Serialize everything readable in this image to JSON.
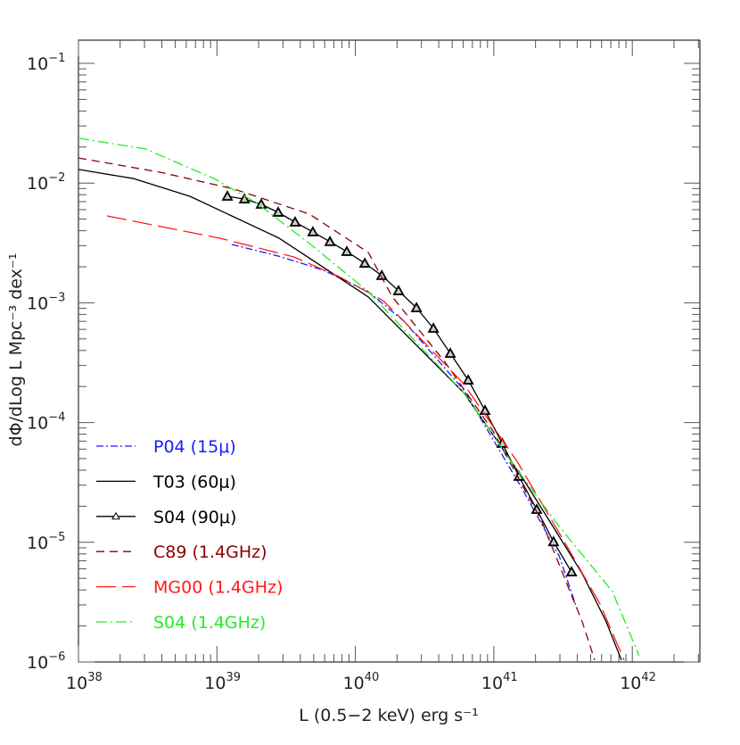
{
  "chart_data": {
    "type": "line",
    "xlabel": "L (0.5−2 keV)  erg s⁻¹",
    "ylabel": "dΦ/dLog L  Mpc⁻³ dex⁻¹",
    "xscale": "log",
    "yscale": "log",
    "xlim": [
      1e+38,
      3.1e+42
    ],
    "ylim": [
      1e-06,
      0.16
    ],
    "grid": false,
    "legend_position": "bottom-left",
    "xticks": [
      {
        "base": "10",
        "exp": "38",
        "value": 1e+38
      },
      {
        "base": "10",
        "exp": "39",
        "value": 1e+39
      },
      {
        "base": "10",
        "exp": "40",
        "value": 1e+40
      },
      {
        "base": "10",
        "exp": "41",
        "value": 1e+41
      },
      {
        "base": "10",
        "exp": "42",
        "value": 1e+42
      }
    ],
    "yticks": [
      {
        "base": "10",
        "exp": "−1",
        "value": 0.1
      },
      {
        "base": "10",
        "exp": "−2",
        "value": 0.01
      },
      {
        "base": "10",
        "exp": "−3",
        "value": 0.001
      },
      {
        "base": "10",
        "exp": "−4",
        "value": 0.0001
      },
      {
        "base": "10",
        "exp": "−5",
        "value": 1e-05
      },
      {
        "base": "10",
        "exp": "−6",
        "value": 1e-06
      }
    ],
    "series": [
      {
        "name": "P04",
        "label_suffix": "(15μ)",
        "color": "#1a1aff",
        "style": "dotdash",
        "markers": false,
        "label_color": "#1a1aff",
        "x": [
          1.28e+39,
          2.81e+39,
          5.9e+39,
          1.24e+40,
          2.24e+40,
          6.05e+40,
          1.63e+41,
          2.96e+41,
          3.98e+41
        ],
        "y": [
          0.00307,
          0.00245,
          0.00187,
          0.00124,
          0.000703,
          0.000188,
          2.7e-05,
          7.71e-06,
          2.8e-06
        ]
      },
      {
        "name": "T03",
        "label_suffix": "(60μ)",
        "color": "#000000",
        "style": "solid",
        "markers": false,
        "label_color": "#000000",
        "x": [
          1e+38,
          2.51e+38,
          6.38e+38,
          2.81e+39,
          1.24e+40,
          6.05e+40,
          1.09e+41,
          1.63e+41,
          2.67e+41,
          4.35e+41,
          6.49e+41,
          8.34e+41
        ],
        "y": [
          0.013,
          0.0109,
          0.00776,
          0.00347,
          0.00112,
          0.000178,
          6.7e-05,
          3.37e-05,
          1.36e-05,
          5.47e-06,
          2.16e-06,
          1.04e-06
        ]
      },
      {
        "name": "S04",
        "label_suffix": "(90μ)",
        "color": "#000000",
        "style": "solid",
        "markers": true,
        "label_color": "#000000",
        "x": [
          1.19e+39,
          1.58e+39,
          2.09e+39,
          2.77e+39,
          3.67e+39,
          4.93e+39,
          6.55e+39,
          8.67e+39,
          1.17e+40,
          1.55e+40,
          2.05e+40,
          2.76e+40,
          3.66e+40,
          4.85e+40,
          6.53e+40,
          8.63e+40,
          1.15e+41,
          1.52e+41,
          2.04e+41,
          2.7e+41,
          3.64e+41
        ],
        "y": [
          0.00776,
          0.00736,
          0.00665,
          0.0057,
          0.00472,
          0.00391,
          0.00324,
          0.00268,
          0.00214,
          0.00169,
          0.00126,
          0.000908,
          0.000612,
          0.000378,
          0.000226,
          0.000126,
          6.7e-05,
          3.55e-05,
          1.88e-05,
          1.01e-05,
          5.65e-06
        ]
      },
      {
        "name": "C89",
        "label_suffix": "(1.4GHz)",
        "color": "#8b0000",
        "style": "dash",
        "markers": false,
        "label_color": "#8b0000",
        "x": [
          1e+38,
          3.91e+38,
          1.34e+39,
          4.66e+39,
          1.24e+40,
          1.85e+40,
          4.5e+40,
          9.86e+40,
          2.2e+41,
          4.35e+41,
          5.35e+41
        ],
        "y": [
          0.0162,
          0.0123,
          0.0089,
          0.0055,
          0.00263,
          0.00112,
          0.000313,
          8.51e-05,
          1.53e-05,
          2.16e-06,
          1.04e-06
        ]
      },
      {
        "name": "MG00",
        "label_suffix": "(1.4GHz)",
        "color": "#ff1a1a",
        "style": "longdash",
        "markers": false,
        "label_color": "#ff1a1a",
        "x": [
          1.61e+38,
          1.06e+39,
          3.61e+39,
          7.59e+39,
          1.59e+40,
          2.24e+40,
          6.05e+40,
          1.47e+41,
          3.23e+41,
          5.85e+41,
          8.73e+41
        ],
        "y": [
          0.00532,
          0.00346,
          0.00241,
          0.00166,
          0.00104,
          0.000703,
          0.000211,
          4.75e-05,
          1.01e-05,
          3.05e-06,
          1.04e-06
        ]
      },
      {
        "name": "S04",
        "label_suffix": "(1.4GHz)",
        "color": "#22ee22",
        "style": "dashdot-light",
        "markers": false,
        "label_color": "#22ee22",
        "x": [
          1e+38,
          3.04e+38,
          9.53e+38,
          1.91e+39,
          4.66e+39,
          1.24e+40,
          6.05e+40,
          1.33e+41,
          2.96e+41,
          7.19e+41,
          1.12e+42
        ],
        "y": [
          0.0237,
          0.0193,
          0.0109,
          0.00689,
          0.00313,
          0.00124,
          0.000178,
          4.75e-05,
          1.36e-05,
          3.88e-06,
          1.13e-06
        ]
      }
    ]
  }
}
